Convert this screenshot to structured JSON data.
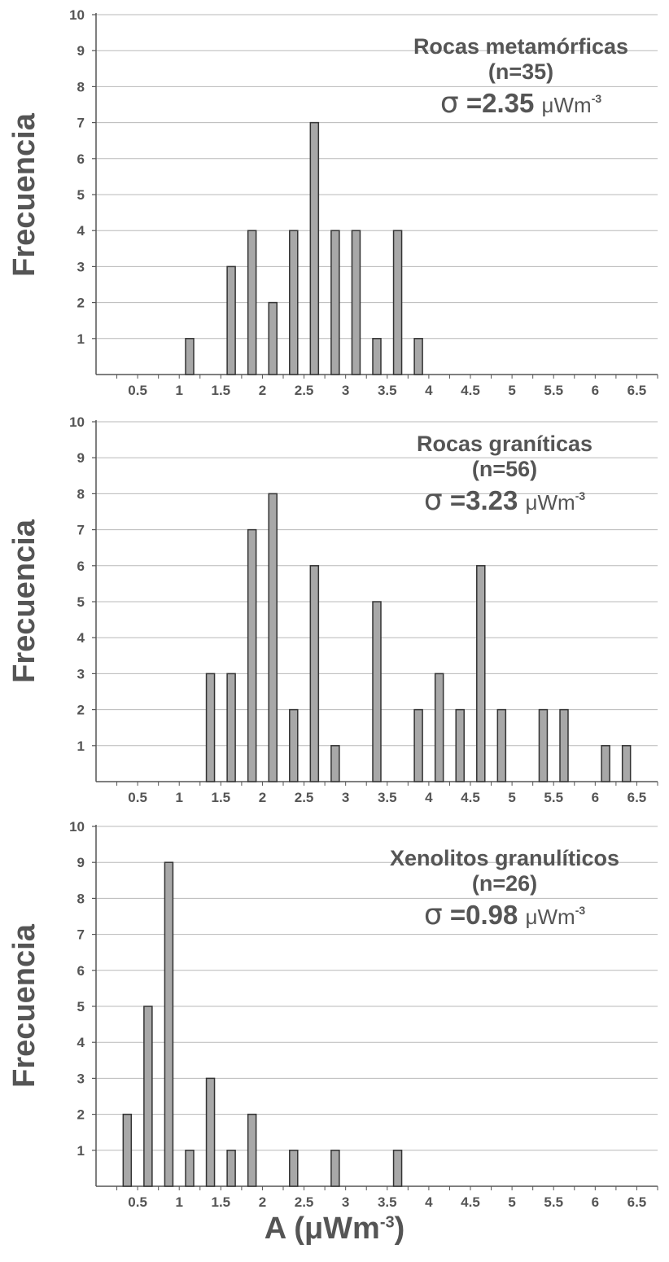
{
  "chart_data": [
    {
      "type": "bar",
      "title": "Rocas metamórficas",
      "n_label": "(n=35)",
      "sigma_symbol": "σ",
      "sigma_value": "=2.35",
      "sigma_unit": "μWm",
      "sigma_exp": "-3",
      "ylabel": "Frecuencia",
      "ylim": [
        0,
        10
      ],
      "yticks": [
        1,
        2,
        3,
        4,
        5,
        6,
        7,
        8,
        9,
        10
      ],
      "xticks": [
        "0.5",
        "1",
        "1.5",
        "2",
        "2.5",
        "3",
        "3.5",
        "4",
        "4.5",
        "5",
        "5.5",
        "6",
        "6.5"
      ],
      "x": [
        1.125,
        1.625,
        1.875,
        2.125,
        2.375,
        2.625,
        2.875,
        3.125,
        3.375,
        3.625,
        3.875
      ],
      "values": [
        1,
        3,
        4,
        2,
        4,
        7,
        4,
        4,
        1,
        4,
        1
      ],
      "grid": true
    },
    {
      "type": "bar",
      "title": "Rocas graníticas",
      "n_label": "(n=56)",
      "sigma_symbol": "σ",
      "sigma_value": "=3.23",
      "sigma_unit": "μWm",
      "sigma_exp": "-3",
      "ylabel": "Frecuencia",
      "ylim": [
        0,
        10
      ],
      "yticks": [
        1,
        2,
        3,
        4,
        5,
        6,
        7,
        8,
        9,
        10
      ],
      "xticks": [
        "0.5",
        "1",
        "1.5",
        "2",
        "2.5",
        "3",
        "3.5",
        "4",
        "4.5",
        "5",
        "5.5",
        "6",
        "6.5"
      ],
      "x": [
        1.375,
        1.625,
        1.875,
        2.125,
        2.375,
        2.625,
        2.875,
        3.375,
        3.875,
        4.125,
        4.375,
        4.625,
        4.875,
        5.375,
        5.625,
        6.125,
        6.375
      ],
      "values": [
        3,
        3,
        7,
        8,
        2,
        6,
        1,
        5,
        2,
        3,
        2,
        6,
        2,
        2,
        2,
        1,
        1
      ],
      "grid": true
    },
    {
      "type": "bar",
      "title": "Xenolitos granulíticos",
      "n_label": "(n=26)",
      "sigma_symbol": "σ",
      "sigma_value": "=0.98",
      "sigma_unit": "μWm",
      "sigma_exp": "-3",
      "ylabel": "Frecuencia",
      "ylim": [
        0,
        10
      ],
      "yticks": [
        1,
        2,
        3,
        4,
        5,
        6,
        7,
        8,
        9,
        10
      ],
      "xticks": [
        "0.5",
        "1",
        "1.5",
        "2",
        "2.5",
        "3",
        "3.5",
        "4",
        "4.5",
        "5",
        "5.5",
        "6",
        "6.5"
      ],
      "x": [
        0.375,
        0.625,
        0.875,
        1.125,
        1.375,
        1.625,
        1.875,
        2.375,
        2.875,
        3.625
      ],
      "values": [
        2,
        5,
        9,
        1,
        3,
        1,
        2,
        1,
        1,
        1
      ],
      "grid": true
    }
  ],
  "xaxis": {
    "label": "A (",
    "unit": "μWm",
    "exp": "-3",
    "close": ")"
  }
}
